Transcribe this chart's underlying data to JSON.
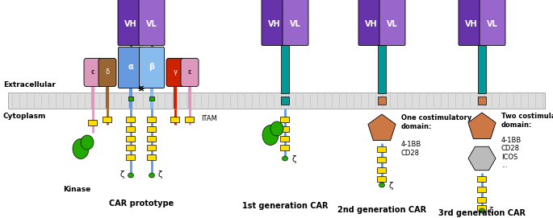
{
  "bg_color": "#ffffff",
  "colors": {
    "purple_dark": "#6633AA",
    "purple_light": "#9966CC",
    "blue_alpha": "#6699DD",
    "blue_beta": "#88BBEE",
    "pink": "#DD99BB",
    "brown_delta": "#996633",
    "red_gamma": "#CC2200",
    "teal": "#009999",
    "green_dark": "#22AA00",
    "yellow": "#FFDD00",
    "orange_brown": "#CC7744",
    "gray_hex": "#BBBBBB",
    "mem_fill": "#DDDDDD",
    "mem_edge": "#AAAAAA"
  },
  "labels": {
    "extracellular": "Extracellular",
    "cytoplasm": "Cytoplasm",
    "kinase": "Kinase",
    "itam": "ITAM",
    "zeta": "ζ",
    "car_prototype": "CAR prototype",
    "gen1": "1st generation CAR",
    "gen2": "2nd generation CAR",
    "gen3": "3rd generation CAR",
    "vh": "VH",
    "vl": "VL",
    "alpha": "α",
    "beta": "β",
    "epsilon": "ε",
    "delta": "δ",
    "gamma": "γ",
    "one_costim": "One costimulatory\ndomain:",
    "two_costim": "Two costimulatory\ndomain:",
    "domains_1": "4-1BB\nCD28",
    "domains_2": "4-1BB\nCD28\nICOS\n..."
  }
}
